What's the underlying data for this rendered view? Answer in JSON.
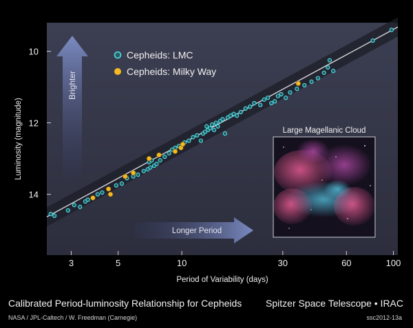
{
  "chart_data": {
    "type": "scatter",
    "x_scale": "log",
    "y_inverted": true,
    "xlabel": "Period of Variability (days)",
    "ylabel": "Luminosity (magnitude)",
    "xlim": [
      2.3,
      105
    ],
    "ylim": [
      15.7,
      9.2
    ],
    "x_ticks": [
      3,
      5,
      10,
      30,
      60,
      100
    ],
    "y_ticks": [
      10,
      12,
      14
    ],
    "grid": false,
    "legend_position": "top-left",
    "fit_line": {
      "x": [
        2.3,
        105
      ],
      "y": [
        14.63,
        9.32
      ]
    },
    "series": [
      {
        "name": "Cepheids: LMC",
        "color": "#4fe0e8",
        "points": [
          [
            2.4,
            14.55
          ],
          [
            2.5,
            14.6
          ],
          [
            2.9,
            14.45
          ],
          [
            3.1,
            14.3
          ],
          [
            3.3,
            14.35
          ],
          [
            3.5,
            14.2
          ],
          [
            3.6,
            14.15
          ],
          [
            4.0,
            14.0
          ],
          [
            4.2,
            13.95
          ],
          [
            4.5,
            13.85
          ],
          [
            4.9,
            13.75
          ],
          [
            5.2,
            13.7
          ],
          [
            5.5,
            13.55
          ],
          [
            5.9,
            13.5
          ],
          [
            6.2,
            13.45
          ],
          [
            6.6,
            13.35
          ],
          [
            6.9,
            13.3
          ],
          [
            7.0,
            13.1
          ],
          [
            7.1,
            13.25
          ],
          [
            7.2,
            13.05
          ],
          [
            7.4,
            13.2
          ],
          [
            7.6,
            13.15
          ],
          [
            7.9,
            13.05
          ],
          [
            8.3,
            12.95
          ],
          [
            8.7,
            12.85
          ],
          [
            9.0,
            12.75
          ],
          [
            9.3,
            12.7
          ],
          [
            9.7,
            12.65
          ],
          [
            10.3,
            12.55
          ],
          [
            10.8,
            12.5
          ],
          [
            11.3,
            12.4
          ],
          [
            11.8,
            12.35
          ],
          [
            12.3,
            12.5
          ],
          [
            12.6,
            12.3
          ],
          [
            12.9,
            12.25
          ],
          [
            13.1,
            12.1
          ],
          [
            13.3,
            12.2
          ],
          [
            13.6,
            12.15
          ],
          [
            13.9,
            12.05
          ],
          [
            14.2,
            12.2
          ],
          [
            14.5,
            12.0
          ],
          [
            14.8,
            12.1
          ],
          [
            15.2,
            11.95
          ],
          [
            15.6,
            11.9
          ],
          [
            16.0,
            12.3
          ],
          [
            16.5,
            11.85
          ],
          [
            17.0,
            11.8
          ],
          [
            17.6,
            11.75
          ],
          [
            18.2,
            11.8
          ],
          [
            19.0,
            11.7
          ],
          [
            20.0,
            11.6
          ],
          [
            21.0,
            11.55
          ],
          [
            22.0,
            11.45
          ],
          [
            23.5,
            11.5
          ],
          [
            24.5,
            11.35
          ],
          [
            25.5,
            11.3
          ],
          [
            26.5,
            11.45
          ],
          [
            27.5,
            11.4
          ],
          [
            28.5,
            11.25
          ],
          [
            29.5,
            11.2
          ],
          [
            31.0,
            11.3
          ],
          [
            32.5,
            11.15
          ],
          [
            35.0,
            11.05
          ],
          [
            38.0,
            10.95
          ],
          [
            41.0,
            10.85
          ],
          [
            44.0,
            10.75
          ],
          [
            47.0,
            10.6
          ],
          [
            49.0,
            10.45
          ],
          [
            50.0,
            10.25
          ],
          [
            52.0,
            10.55
          ],
          [
            80.0,
            9.7
          ],
          [
            98.0,
            9.4
          ]
        ]
      },
      {
        "name": "Cepheids: Milky Way",
        "color": "#f5b921",
        "points": [
          [
            3.8,
            14.1
          ],
          [
            4.5,
            13.85
          ],
          [
            4.6,
            14.0
          ],
          [
            5.4,
            13.5
          ],
          [
            5.9,
            13.4
          ],
          [
            7.0,
            13.0
          ],
          [
            7.8,
            12.9
          ],
          [
            9.3,
            12.8
          ],
          [
            9.9,
            12.7
          ],
          [
            10.1,
            12.6
          ],
          [
            35.5,
            10.9
          ]
        ]
      }
    ],
    "annotations": [
      "Brighter",
      "Longer Period"
    ],
    "inset": {
      "title": "Large Magellanic Cloud"
    },
    "caption": "Calibrated Period-luminosity Relationship for Cepheids",
    "credit_right": "Spitzer Space Telescope • IRAC",
    "credit_left": "NASA / JPL-Caltech / W. Freedman (Carnegie)",
    "image_id": "ssc2012-13a"
  }
}
